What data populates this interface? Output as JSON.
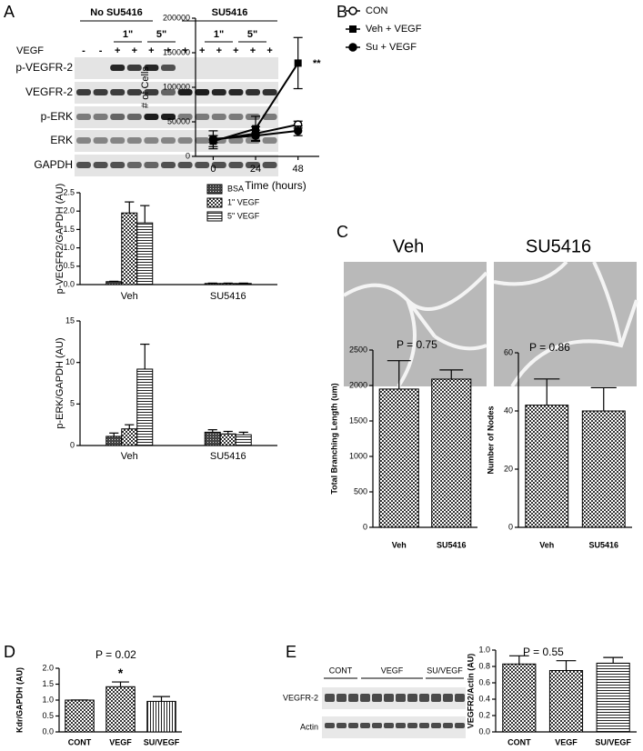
{
  "panel_labels": [
    "A",
    "B",
    "C",
    "D",
    "E"
  ],
  "blot_a": {
    "groups": [
      "No SU5416",
      "SU5416"
    ],
    "times": [
      "1\"",
      "5\"",
      "1\"",
      "5\""
    ],
    "vegf_label": "VEGF",
    "vegf_signs": [
      "-",
      "-",
      "+",
      "+",
      "+",
      "+",
      "+",
      "+",
      "+",
      "+",
      "+",
      "+"
    ],
    "bands": [
      "p-VEGFR-2",
      "VEGFR-2",
      "p-ERK",
      "ERK",
      "GAPDH"
    ]
  },
  "panel_c": {
    "images": [
      "Veh",
      "SU5416"
    ]
  },
  "blot_e": {
    "groups": [
      "CONT",
      "VEGF",
      "SU/VEGF"
    ],
    "bands": [
      "VEGFR-2",
      "Actin"
    ]
  },
  "chart_data": [
    {
      "type": "bar",
      "ylabel": "p-VEGFR2/GAPDH (AU)",
      "categories": [
        "Veh",
        "SU5416"
      ],
      "series": [
        {
          "name": "BSA",
          "pattern": "crosshatch",
          "values": [
            0.08,
            0.03
          ],
          "errors": [
            0.01,
            0.01
          ]
        },
        {
          "name": "1\" VEGF",
          "pattern": "checker",
          "values": [
            1.95,
            0.03
          ],
          "errors": [
            0.3,
            0.01
          ]
        },
        {
          "name": "5\" VEGF",
          "pattern": "hstripe",
          "values": [
            1.68,
            0.03
          ],
          "errors": [
            0.47,
            0.01
          ]
        }
      ],
      "ylim": [
        0,
        2.5
      ],
      "yticks": [
        {
          "value": 0,
          "label": "0.0"
        },
        {
          "value": 0.5,
          "label": "0.5"
        },
        {
          "value": 1,
          "label": "1.0"
        },
        {
          "value": 1.5,
          "label": "1.5"
        },
        {
          "value": 2,
          "label": "2.0"
        },
        {
          "value": 2.5,
          "label": "2.5"
        }
      ],
      "legend": "top-right"
    },
    {
      "type": "bar",
      "ylabel": "p-ERK/GAPDH (AU)",
      "categories": [
        "Veh",
        "SU5416"
      ],
      "series": [
        {
          "pattern": "crosshatch",
          "values": [
            1.1,
            1.6
          ],
          "errors": [
            0.4,
            0.3
          ]
        },
        {
          "pattern": "checker",
          "values": [
            2.0,
            1.4
          ],
          "errors": [
            0.5,
            0.3
          ]
        },
        {
          "pattern": "hstripe",
          "values": [
            9.2,
            1.3
          ],
          "errors": [
            3.0,
            0.3
          ]
        }
      ],
      "ylim": [
        0,
        15
      ],
      "yticks": [
        0,
        5,
        10,
        15
      ]
    },
    {
      "type": "line",
      "xlabel": "Time  (hours)",
      "ylabel": "# of Cells",
      "x": [
        0,
        24,
        48
      ],
      "xlim": [
        -10,
        60
      ],
      "xticks": [
        0,
        24,
        48
      ],
      "series": [
        {
          "name": "CON",
          "marker": "open-circle",
          "values": [
            24000,
            33000,
            46000
          ],
          "errors": [
            13000,
            10000,
            5000
          ]
        },
        {
          "name": "Veh + VEGF",
          "marker": "square",
          "values": [
            22000,
            40000,
            135000
          ],
          "errors": [
            8000,
            18000,
            37000
          ]
        },
        {
          "name": "Su + VEGF",
          "marker": "circle",
          "values": [
            25000,
            30000,
            37000
          ],
          "errors": [
            5000,
            8000,
            7000
          ]
        }
      ],
      "ylim": [
        0,
        200000
      ],
      "yticks": [
        0,
        50000,
        100000,
        150000,
        200000
      ],
      "note": "**",
      "legend": "top-right"
    },
    {
      "type": "bar",
      "ylabel": "Total Branching Length (um)",
      "categories": [
        "Veh",
        "SU5416"
      ],
      "values": [
        1950,
        2090
      ],
      "errors": [
        400,
        130
      ],
      "patterns": [
        "checker",
        "checker"
      ],
      "ylim": [
        0,
        2500
      ],
      "yticks": [
        0,
        500,
        1000,
        1500,
        2000,
        2500
      ],
      "note": "P = 0.75"
    },
    {
      "type": "bar",
      "ylabel": "Number of Nodes",
      "categories": [
        "Veh",
        "SU5416"
      ],
      "values": [
        42,
        40
      ],
      "errors": [
        9,
        8
      ],
      "patterns": [
        "checker",
        "checker"
      ],
      "ylim": [
        0,
        60
      ],
      "yticks": [
        0,
        20,
        40,
        60
      ],
      "note": "P = 0.86"
    },
    {
      "type": "bar",
      "ylabel": "Kdr/GAPDH (AU)",
      "categories": [
        "CONT",
        "VEGF",
        "SU/VEGF"
      ],
      "values": [
        1.0,
        1.42,
        0.96
      ],
      "errors": [
        0,
        0.15,
        0.15
      ],
      "patterns": [
        "checker",
        "checker",
        "vstripe"
      ],
      "ylim": [
        0,
        2
      ],
      "yticks": [
        {
          "value": 0,
          "label": "0.0"
        },
        {
          "value": 0.5,
          "label": "0.5"
        },
        {
          "value": 1,
          "label": "1.0"
        },
        {
          "value": 1.5,
          "label": "1.5"
        },
        {
          "value": 2,
          "label": "2.0"
        }
      ],
      "note": "P = 0.02",
      "star": "*"
    },
    {
      "type": "bar",
      "ylabel": "VEGFR2/Actin (AU)",
      "categories": [
        "CONT",
        "VEGF",
        "SU/VEGF"
      ],
      "values": [
        0.83,
        0.75,
        0.84
      ],
      "errors": [
        0.1,
        0.12,
        0.07
      ],
      "patterns": [
        "checker",
        "checker",
        "hstripe"
      ],
      "ylim": [
        0,
        1
      ],
      "yticks": [
        {
          "value": 0,
          "label": "0.0"
        },
        {
          "value": 0.2,
          "label": "0.2"
        },
        {
          "value": 0.4,
          "label": "0.4"
        },
        {
          "value": 0.6,
          "label": "0.6"
        },
        {
          "value": 0.8,
          "label": "0.8"
        },
        {
          "value": 1,
          "label": "1.0"
        }
      ],
      "note": "P = 0.55"
    }
  ]
}
